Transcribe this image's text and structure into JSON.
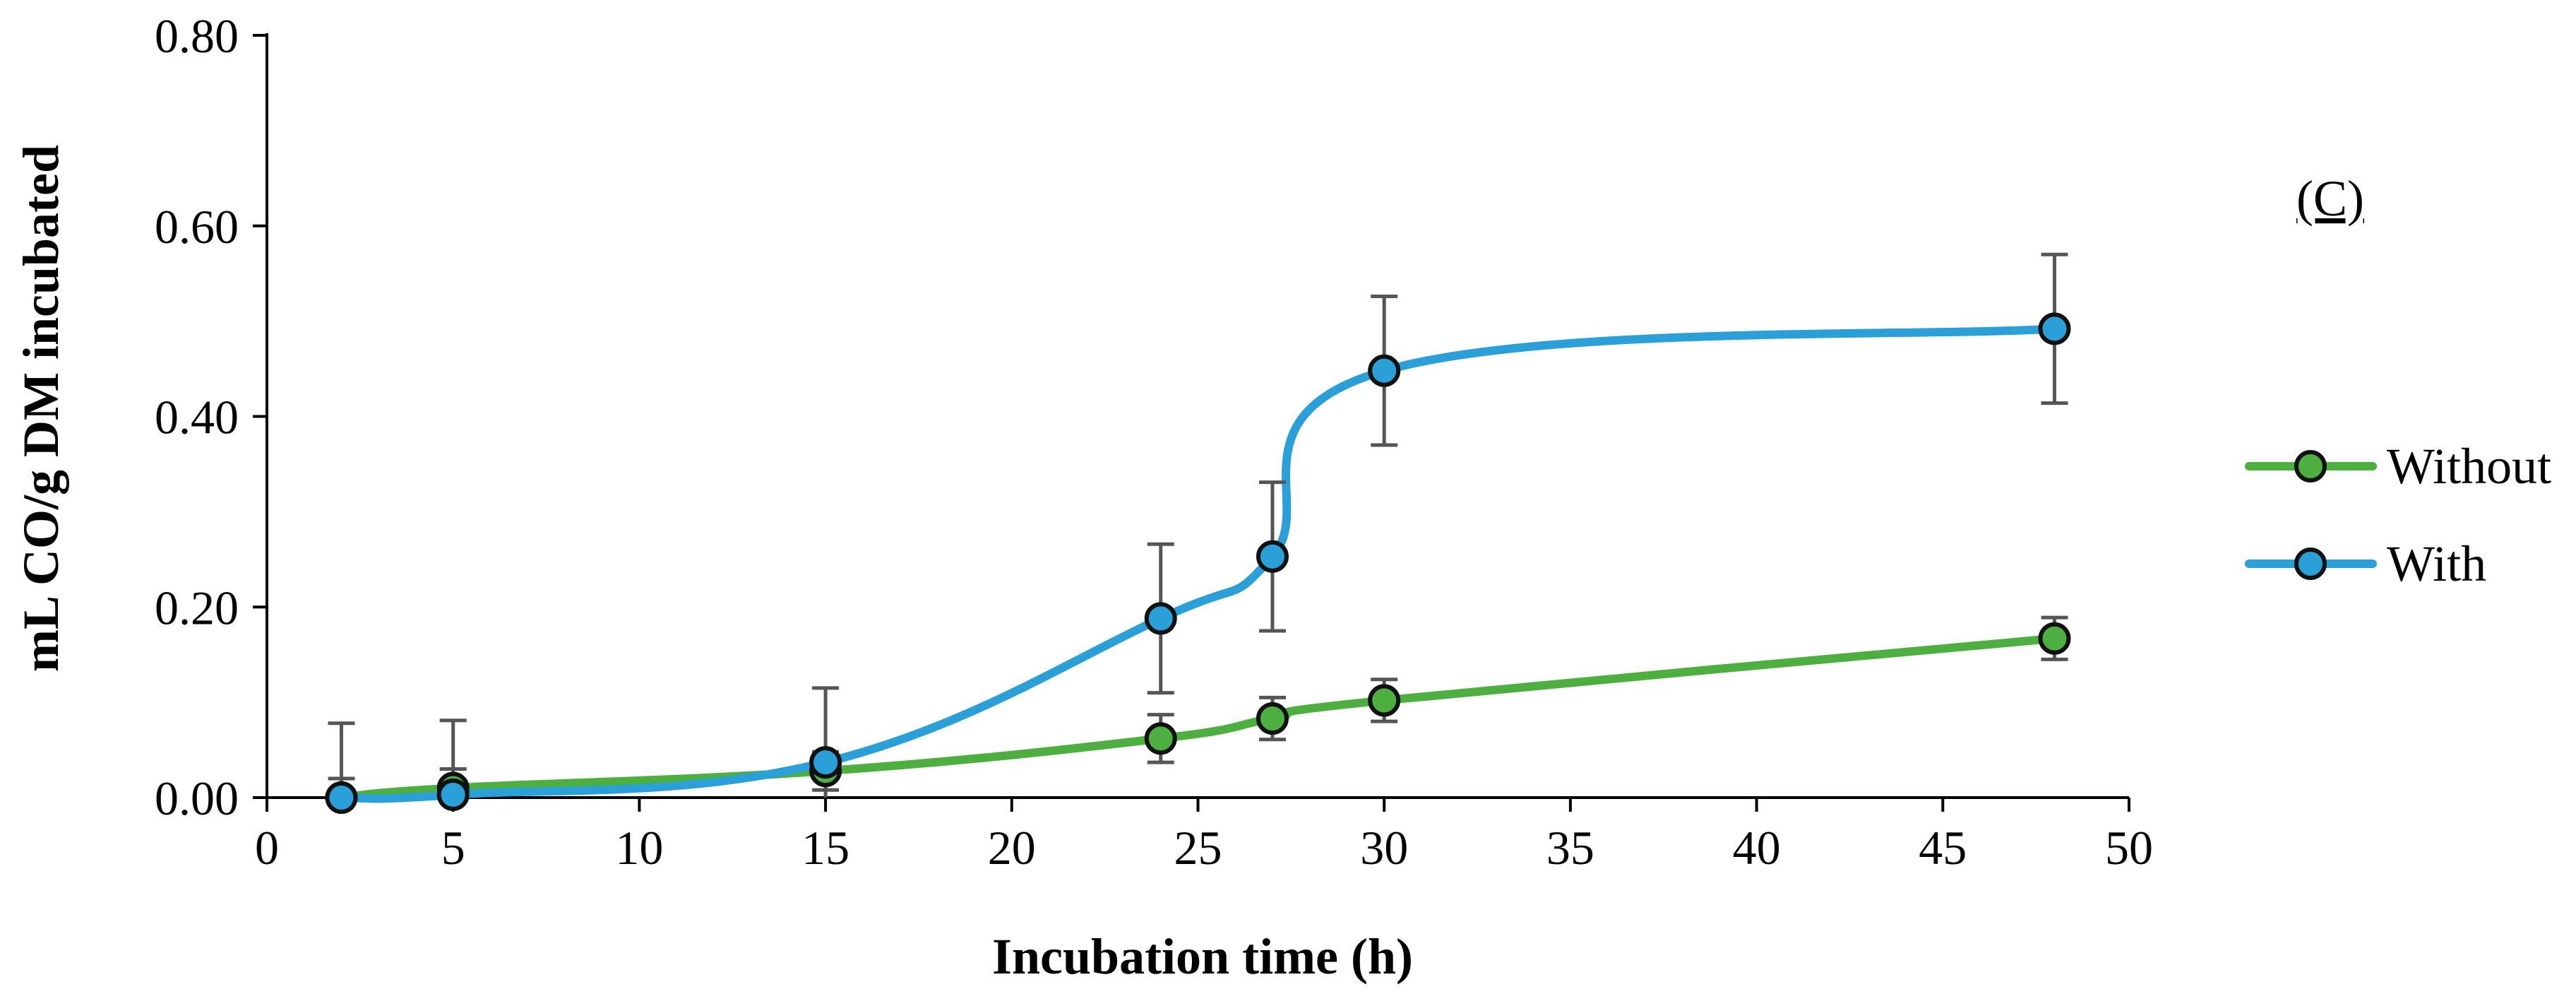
{
  "chart_data": {
    "type": "line",
    "title": "",
    "panel_label": "(C)",
    "xlabel": "Incubation time (h)",
    "ylabel": "mL CO/g DM incubated",
    "xlim": [
      0,
      50
    ],
    "ylim": [
      0,
      0.8
    ],
    "x_ticks": [
      0,
      5,
      10,
      15,
      20,
      25,
      30,
      35,
      40,
      45,
      50
    ],
    "x_tick_labels": [
      "0",
      "5",
      "10",
      "15",
      "20",
      "25",
      "30",
      "35",
      "40",
      "45",
      "50"
    ],
    "y_ticks": [
      0,
      0.2,
      0.4,
      0.6,
      0.8
    ],
    "y_tick_labels": [
      "0.00",
      "0.20",
      "0.40",
      "0.60",
      "0.80"
    ],
    "grid": false,
    "legend_position": "right",
    "x": [
      2,
      5,
      15,
      24,
      27,
      30,
      48
    ],
    "series": [
      {
        "name": "Without",
        "color": "#4daf3f",
        "values": [
          0.0,
          0.01,
          0.028,
          0.062,
          0.083,
          0.102,
          0.167
        ],
        "errors": [
          0.02,
          0.02,
          0.02,
          0.025,
          0.022,
          0.022,
          0.022
        ]
      },
      {
        "name": "With",
        "color": "#2a9fd8",
        "values": [
          0.0,
          0.003,
          0.037,
          0.188,
          0.253,
          0.448,
          0.492
        ],
        "errors": [
          0.078,
          0.078,
          0.078,
          0.078,
          0.078,
          0.078,
          0.078
        ]
      }
    ]
  }
}
